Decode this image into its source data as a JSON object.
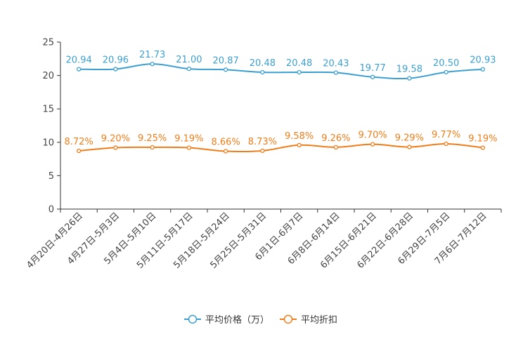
{
  "chart_data": {
    "type": "line",
    "categories": [
      "4月20日-4月26日",
      "4月27日-5月3日",
      "5月4日-5月10日",
      "5月11日-5月17日",
      "5月18日-5月24日",
      "5月25日-5月31日",
      "6月1日-6月7日",
      "6月8日-6月14日",
      "6月15日-6月21日",
      "6月22日-6月28日",
      "6月29日-7月5日",
      "7月6日-7月12日"
    ],
    "ylim": [
      0,
      25
    ],
    "yticks": [
      0,
      5,
      10,
      15,
      20,
      25
    ],
    "legend_position": "bottom-center",
    "series": [
      {
        "name": "平均价格（万）",
        "color": "#3b9fd1",
        "values": [
          20.94,
          20.96,
          21.73,
          21.0,
          20.87,
          20.48,
          20.48,
          20.43,
          19.77,
          19.58,
          20.5,
          20.93
        ],
        "labels": [
          "20.94",
          "20.96",
          "21.73",
          "21.00",
          "20.87",
          "20.48",
          "20.48",
          "20.43",
          "19.77",
          "19.58",
          "20.50",
          "20.93"
        ]
      },
      {
        "name": "平均折扣",
        "color": "#f07d1a",
        "values": [
          8.72,
          9.2,
          9.25,
          9.19,
          8.66,
          8.73,
          9.58,
          9.26,
          9.7,
          9.29,
          9.77,
          9.19
        ],
        "labels": [
          "8.72%",
          "9.20%",
          "9.25%",
          "9.19%",
          "8.66%",
          "8.73%",
          "9.58%",
          "9.26%",
          "9.70%",
          "9.29%",
          "9.77%",
          "9.19%"
        ]
      }
    ]
  }
}
